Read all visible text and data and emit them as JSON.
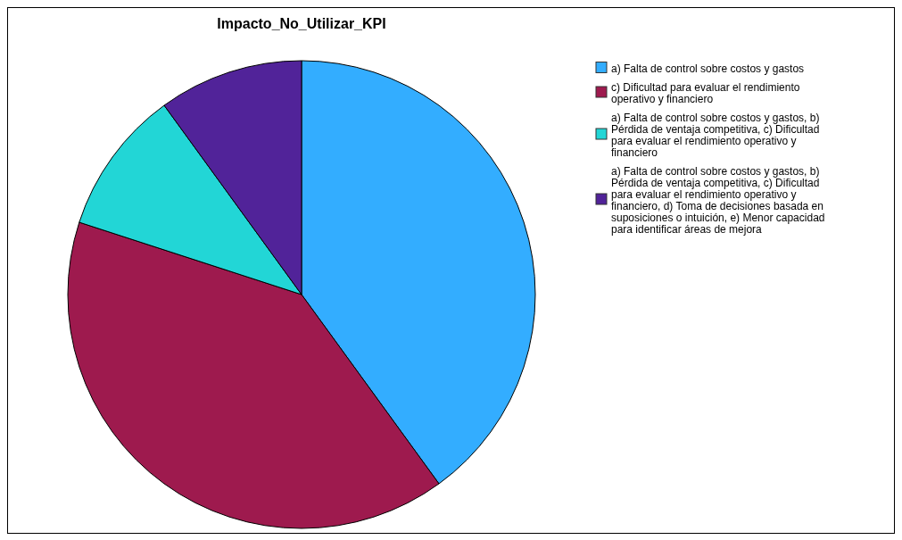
{
  "chart_data": {
    "type": "pie",
    "title": "Impacto_No_Utilizar_KPI",
    "categories": [
      "a) Falta de control sobre costos y gastos",
      "c) Dificultad para evaluar el rendimiento operativo y financiero",
      "a) Falta de control sobre costos y gastos, b) Pérdida de ventaja competitiva, c) Dificultad para evaluar el rendimiento operativo y financiero",
      "a) Falta de control sobre costos y gastos, b) Pérdida de ventaja competitiva, c) Dificultad para evaluar el rendimiento operativo y financiero, d) Toma de decisiones basada en suposiciones o intuición, e) Menor capacidad para identificar áreas de mejora"
    ],
    "values": [
      40,
      40,
      10,
      10
    ],
    "colors": [
      "#33adff",
      "#9e1a4e",
      "#22d6d6",
      "#512399"
    ],
    "legend": "right"
  }
}
